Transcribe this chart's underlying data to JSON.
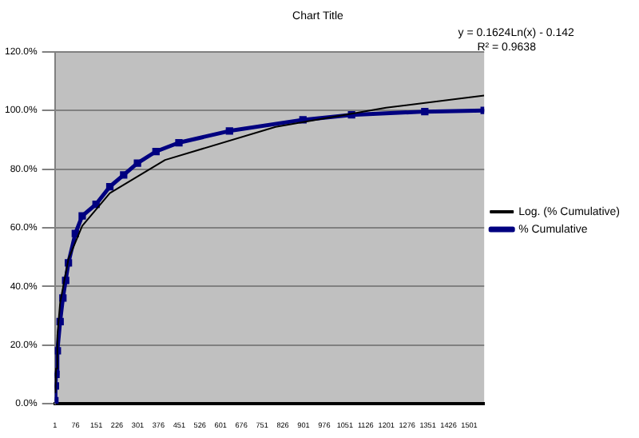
{
  "chart_data": {
    "type": "line",
    "title": "Chart Title",
    "annotations": [
      "y = 0.1624Ln(x) - 0.142",
      "R² = 0.9638"
    ],
    "series": [
      {
        "name": "% Cumulative",
        "color": "#000080",
        "marker": "square",
        "x": [
          1,
          3,
          5,
          10,
          20,
          30,
          40,
          50,
          75,
          100,
          150,
          200,
          250,
          300,
          367,
          450,
          633,
          899,
          1075,
          1340,
          1555
        ],
        "values": [
          1,
          6,
          10,
          18,
          28,
          36,
          42,
          48,
          58,
          64,
          68,
          74,
          78,
          82,
          86,
          89,
          93,
          96.8,
          98.5,
          99.6,
          100
        ]
      },
      {
        "name": "Log. (% Cumulative)",
        "color": "#000000",
        "marker": "none",
        "x": [
          3,
          5,
          10,
          20,
          50,
          100,
          200,
          400,
          800,
          1200,
          1555
        ],
        "values": [
          3.6,
          11.9,
          23.2,
          34.4,
          49.3,
          60.6,
          71.8,
          83.1,
          94.4,
          100.9,
          105.1
        ]
      }
    ],
    "xlim": [
      1,
      1555
    ],
    "xticks": [
      1,
      76,
      151,
      226,
      301,
      376,
      451,
      526,
      601,
      676,
      751,
      826,
      901,
      976,
      1051,
      1126,
      1201,
      1276,
      1351,
      1426,
      1501
    ],
    "ylim": [
      0,
      120
    ],
    "yticks": [
      {
        "value": 0,
        "label": "0.0%"
      },
      {
        "value": 20,
        "label": "20.0%"
      },
      {
        "value": 40,
        "label": "40.0%"
      },
      {
        "value": 60,
        "label": "60.0%"
      },
      {
        "value": 80,
        "label": "80.0%"
      },
      {
        "value": 100,
        "label": "100.0%"
      },
      {
        "value": 120,
        "label": "120.0%"
      }
    ],
    "grid": "y",
    "legend": "right"
  }
}
